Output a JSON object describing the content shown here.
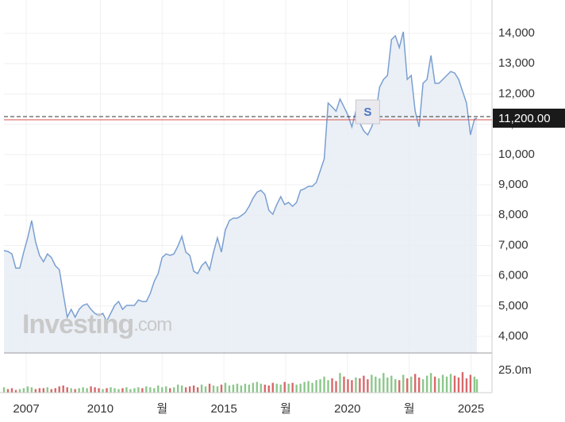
{
  "chart_data": {
    "type": "area",
    "x": [
      2006.1,
      2006.26,
      2006.42,
      2006.58,
      2006.74,
      2006.9,
      2007.06,
      2007.22,
      2007.38,
      2007.54,
      2007.7,
      2007.86,
      2008.02,
      2008.18,
      2008.34,
      2008.5,
      2008.66,
      2008.82,
      2008.98,
      2009.14,
      2009.3,
      2009.46,
      2009.62,
      2009.78,
      2009.94,
      2010.1,
      2010.26,
      2010.42,
      2010.58,
      2010.74,
      2010.9,
      2011.06,
      2011.22,
      2011.38,
      2011.54,
      2011.7,
      2011.86,
      2012.02,
      2012.18,
      2012.34,
      2012.5,
      2012.66,
      2012.82,
      2012.98,
      2013.14,
      2013.3,
      2013.46,
      2013.62,
      2013.78,
      2013.94,
      2014.1,
      2014.26,
      2014.42,
      2014.58,
      2014.74,
      2014.9,
      2015.06,
      2015.22,
      2015.38,
      2015.54,
      2015.7,
      2015.86,
      2016.02,
      2016.18,
      2016.34,
      2016.5,
      2016.66,
      2016.82,
      2016.98,
      2017.14,
      2017.3,
      2017.46,
      2017.62,
      2017.78,
      2017.94,
      2018.1,
      2018.26,
      2018.42,
      2018.58,
      2018.74,
      2018.9,
      2019.06,
      2019.22,
      2019.38,
      2019.54,
      2019.7,
      2019.86,
      2020.02,
      2020.18,
      2020.34,
      2020.5,
      2020.66,
      2020.82,
      2020.98,
      2021.14,
      2021.3,
      2021.46,
      2021.62,
      2021.78,
      2021.94,
      2022.1,
      2022.26,
      2022.42,
      2022.58,
      2022.74,
      2022.9,
      2023.06,
      2023.22,
      2023.38,
      2023.54,
      2023.7,
      2023.86,
      2024.02,
      2024.18,
      2024.34,
      2024.5,
      2024.66,
      2024.82,
      2024.98,
      2025.14,
      2025.24
    ],
    "series": [
      {
        "color": "#7a9fd1",
        "values": [
          6830,
          6800,
          6720,
          6250,
          6250,
          6780,
          7250,
          7820,
          7110,
          6670,
          6460,
          6720,
          6600,
          6330,
          6200,
          5410,
          4630,
          4890,
          4630,
          4890,
          5020,
          5070,
          4890,
          4760,
          4680,
          4760,
          4500,
          4760,
          5020,
          5150,
          4890,
          5020,
          5020,
          5020,
          5200,
          5150,
          5150,
          5410,
          5810,
          6070,
          6600,
          6720,
          6670,
          6720,
          6980,
          7300,
          6780,
          6670,
          6150,
          6070,
          6330,
          6460,
          6200,
          6780,
          7250,
          6780,
          7510,
          7820,
          7900,
          7900,
          7980,
          8080,
          8290,
          8560,
          8760,
          8820,
          8680,
          8160,
          8030,
          8350,
          8610,
          8350,
          8420,
          8290,
          8420,
          8820,
          8870,
          8950,
          8950,
          9080,
          9470,
          9860,
          11700,
          11570,
          11430,
          11830,
          11570,
          11300,
          10910,
          11430,
          11040,
          10780,
          10650,
          10910,
          11300,
          12220,
          12480,
          12610,
          13790,
          13920,
          13530,
          14050,
          12480,
          12610,
          11430,
          10910,
          12350,
          12480,
          13270,
          12350,
          12350,
          12480,
          12610,
          12740,
          12690,
          12480,
          12090,
          11700,
          10650,
          11170,
          11200
        ]
      },
      {
        "up_color": "#8cc78c",
        "down_color": "#d9686a",
        "axis": "y2",
        "values": [
          6,
          4,
          5,
          3,
          4,
          5,
          7,
          6,
          4,
          5,
          5,
          6,
          4,
          5,
          7,
          8,
          6,
          5,
          4,
          5,
          6,
          5,
          7,
          6,
          5,
          4,
          5,
          6,
          5,
          4,
          5,
          6,
          4,
          5,
          6,
          5,
          7,
          6,
          5,
          8,
          6,
          7,
          5,
          6,
          9,
          8,
          6,
          7,
          8,
          6,
          9,
          7,
          10,
          8,
          7,
          9,
          11,
          8,
          9,
          10,
          8,
          10,
          9,
          11,
          12,
          10,
          9,
          8,
          11,
          10,
          9,
          12,
          10,
          11,
          9,
          10,
          12,
          13,
          11,
          14,
          15,
          18,
          14,
          16,
          13,
          22,
          18,
          15,
          14,
          17,
          16,
          19,
          15,
          20,
          18,
          16,
          22,
          17,
          19,
          15,
          14,
          20,
          16,
          18,
          21,
          17,
          15,
          19,
          22,
          18,
          16,
          20,
          18,
          21,
          19,
          17,
          23,
          16,
          20,
          18,
          15
        ]
      }
    ],
    "xlim": [
      2006.1,
      2025.85
    ],
    "xticks": [
      2007,
      2010,
      {
        "value": 2012.5,
        "label": "월"
      },
      2015,
      {
        "value": 2017.5,
        "label": "월"
      },
      2020,
      {
        "value": 2022.5,
        "label": "월"
      },
      2025
    ],
    "ylim": [
      3450,
      15100
    ],
    "yticks": [
      {
        "value": 4000,
        "label": "4,000"
      },
      {
        "value": 5000,
        "label": "5,000"
      },
      {
        "value": 6000,
        "label": "6,000"
      },
      {
        "value": 7000,
        "label": "7,000"
      },
      {
        "value": 8000,
        "label": "8,000"
      },
      {
        "value": 9000,
        "label": "9,000"
      },
      {
        "value": 10000,
        "label": "10,000"
      },
      {
        "value": 11000,
        "label": "11,000"
      },
      {
        "value": 12000,
        "label": "12,000"
      },
      {
        "value": 13000,
        "label": "13,000"
      },
      {
        "value": 14000,
        "label": "14,000"
      }
    ],
    "y2lim": [
      0,
      40
    ],
    "y2ticks": [
      {
        "value": 25,
        "label": "25.0m"
      }
    ],
    "last_price": 11200,
    "last_price_label": "11,200.00",
    "marker": {
      "x": 2020.82,
      "label": "S"
    },
    "watermark": "Investing",
    "watermark_suffix": ".com",
    "grid": true
  }
}
